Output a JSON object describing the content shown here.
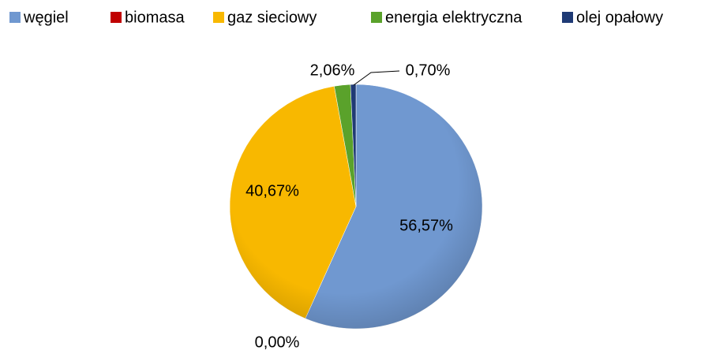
{
  "chart_data": {
    "type": "pie",
    "categories": [
      "węgiel",
      "biomasa",
      "gaz sieciowy",
      "energia elektryczna",
      "olej opałowy"
    ],
    "values": [
      56.57,
      0.0,
      40.67,
      2.06,
      0.7
    ],
    "value_labels": [
      "56,57%",
      "0,00%",
      "40,67%",
      "2,06%",
      "0,70%"
    ],
    "colors": [
      "#7098d0",
      "#c00000",
      "#f8b800",
      "#5aa22b",
      "#1f3a75"
    ],
    "legend": "top"
  }
}
